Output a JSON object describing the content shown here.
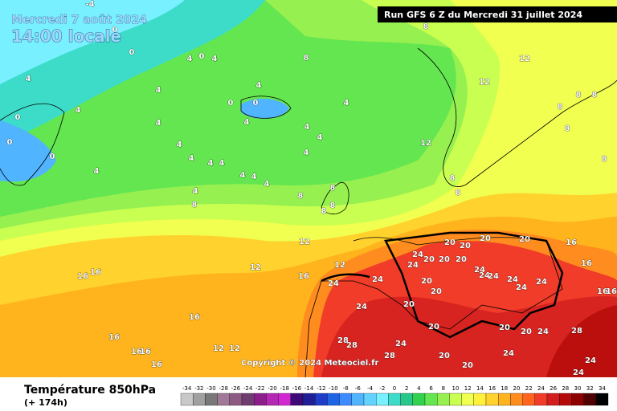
{
  "header": {
    "date": "Mercredi 7 août 2024",
    "local_time": "14:00 locale",
    "run": "Run GFS 6 Z du Mercredi 31 juillet 2024"
  },
  "copyright": "Copyright © 2024 Meteociel.fr",
  "footer": {
    "title": "Température 850hPa",
    "lead": "(+ 174h)"
  },
  "legend": {
    "values": [
      -34,
      -32,
      -30,
      -28,
      -26,
      -24,
      -22,
      -20,
      -18,
      -16,
      -14,
      -12,
      -10,
      -8,
      -6,
      -4,
      -2,
      0,
      2,
      4,
      6,
      8,
      10,
      12,
      14,
      16,
      18,
      20,
      22,
      24,
      26,
      28,
      30,
      32,
      34
    ],
    "colors": [
      "#c8c8c8",
      "#a0a0a0",
      "#787878",
      "#a07898",
      "#8c5a82",
      "#6e3c6e",
      "#8c1e8c",
      "#b428b4",
      "#d228d2",
      "#3c0a78",
      "#1e1e96",
      "#1e3cc8",
      "#1e64e6",
      "#3c8cff",
      "#50b4ff",
      "#64d2ff",
      "#78f0ff",
      "#3cdcc8",
      "#28c88c",
      "#32d250",
      "#64e650",
      "#96f050",
      "#c8ff50",
      "#f0ff50",
      "#fff03c",
      "#ffd22d",
      "#ffb41e",
      "#ff8c1e",
      "#ff641e",
      "#f03c28",
      "#d21e1e",
      "#b40a0a",
      "#8c0000",
      "#500000",
      "#000000"
    ]
  },
  "contour_labels": [
    "-4",
    "0",
    "0",
    "4",
    "0",
    "4",
    "8",
    "4",
    "4",
    "0",
    "0",
    "0",
    "4",
    "4",
    "0",
    "0",
    "4",
    "4",
    "4",
    "4",
    "4",
    "4",
    "4",
    "4",
    "4",
    "4",
    "4",
    "4",
    "4",
    "4",
    "4",
    "8",
    "8",
    "8",
    "8",
    "8",
    "12",
    "8",
    "12",
    "12",
    "8",
    "8",
    "8",
    "8",
    "8",
    "8",
    "8",
    "12",
    "12",
    "12",
    "16",
    "16",
    "16",
    "16",
    "16",
    "16",
    "16",
    "16",
    "12",
    "12",
    "20",
    "20",
    "20",
    "20",
    "16",
    "16",
    "16",
    "16",
    "24",
    "24",
    "20",
    "20",
    "20",
    "24",
    "24",
    "24",
    "24",
    "24",
    "24",
    "20",
    "20",
    "24",
    "24",
    "24",
    "20",
    "20",
    "20",
    "20",
    "24",
    "28",
    "28",
    "28",
    "24",
    "28",
    "20",
    "20",
    "24",
    "24",
    "24"
  ]
}
